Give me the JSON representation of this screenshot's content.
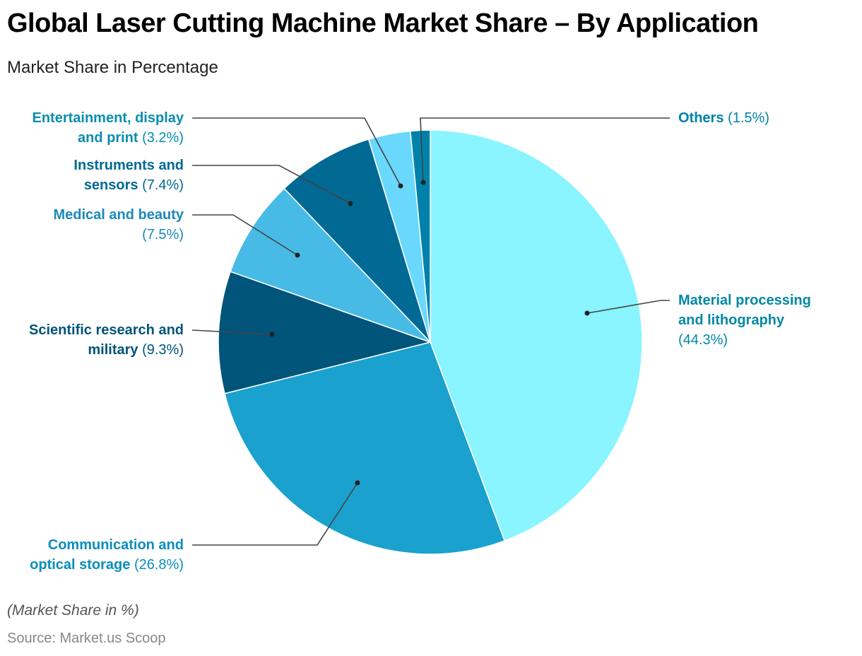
{
  "header": {
    "title": "Global Laser Cutting Machine Market Share – By Application",
    "subtitle": "Market Share in Percentage"
  },
  "footer": {
    "note": "(Market Share in %)",
    "source": "Source: Market.us Scoop"
  },
  "labels": [
    {
      "name": "Material processing and lithography",
      "line1": "Material processing",
      "line2": "and lithography",
      "value": "(44.3%)"
    },
    {
      "name": "Communication and optical storage",
      "line1": "Communication and",
      "line2": "optical storage",
      "value": "(26.8%)"
    },
    {
      "name": "Scientific research and military",
      "line1": "Scientific research and",
      "line2": "military",
      "value": "(9.3%)"
    },
    {
      "name": "Medical and beauty",
      "line1": "Medical and beauty",
      "line2": "",
      "value": "(7.5%)"
    },
    {
      "name": "Instruments and sensors",
      "line1": "Instruments and",
      "line2": "sensors",
      "value": "(7.4%)"
    },
    {
      "name": "Entertainment, display and print",
      "line1": "Entertainment, display",
      "line2": "and print",
      "value": "(3.2%)"
    },
    {
      "name": "Others",
      "line1": "Others",
      "line2": "",
      "value": "(1.5%)"
    }
  ],
  "chart_data": {
    "type": "pie",
    "title": "Global Laser Cutting Machine Market Share – By Application",
    "subtitle": "Market Share in Percentage",
    "categories": [
      "Material processing and lithography",
      "Communication and optical storage",
      "Scientific research and military",
      "Medical and beauty",
      "Instruments and sensors",
      "Entertainment, display and print",
      "Others"
    ],
    "values": [
      44.3,
      26.8,
      9.3,
      7.5,
      7.4,
      3.2,
      1.5
    ],
    "colors": [
      "#8af4ff",
      "#1aa1cd",
      "#01547a",
      "#47bbe6",
      "#006994",
      "#69d8fc",
      "#0081ab"
    ],
    "label_colors": [
      "#0288a6",
      "#0a8dbd",
      "#01547a",
      "#1a8ab8",
      "#006994",
      "#0a8db0",
      "#0081ab"
    ],
    "start_angle_deg": 0,
    "direction": "clockwise",
    "unit": "%",
    "legend": "none (callout labels)"
  }
}
